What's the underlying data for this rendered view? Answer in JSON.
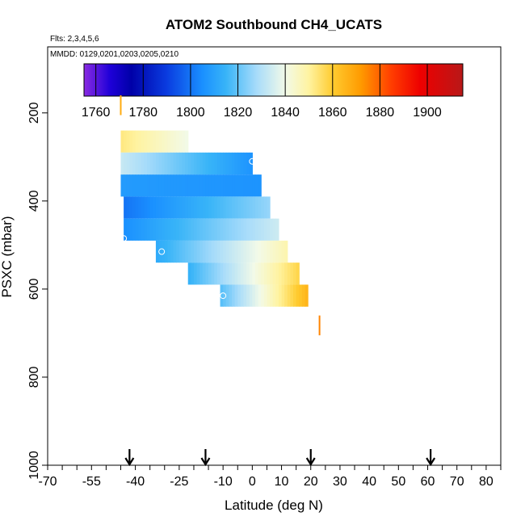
{
  "chart_data": {
    "type": "heatmap",
    "title": "ATOM2 Southbound CH4_UCATS",
    "flights_label": "Flts: 2,3,4,5,6",
    "dates_label": "MMDD: 0129,0201,0203,0205,0210",
    "xlabel": "Latitude (deg N)",
    "ylabel": "PSXC (mbar)",
    "xlim": [
      -70,
      85
    ],
    "ylim": [
      1000,
      50
    ],
    "x_ticks": [
      -70,
      -55,
      -40,
      -25,
      -10,
      0,
      10,
      20,
      30,
      40,
      50,
      60,
      70,
      80
    ],
    "x_tick_labels": [
      "-70",
      "-55",
      "-40",
      "-25",
      "-10",
      "0",
      "10",
      "20",
      "30",
      "40",
      "50",
      "60",
      "70",
      "80"
    ],
    "y_ticks": [
      200,
      400,
      600,
      800,
      1000
    ],
    "y_tick_labels": [
      "200",
      "400",
      "600",
      "800",
      "1000"
    ],
    "colorbar": {
      "range": [
        1755,
        1915
      ],
      "ticks": [
        1760,
        1780,
        1800,
        1820,
        1840,
        1860,
        1880,
        1900
      ],
      "tick_labels": [
        "1760",
        "1780",
        "1800",
        "1820",
        "1840",
        "1860",
        "1880",
        "1900"
      ],
      "stops": [
        {
          "v": 1755,
          "c": "#8a2be2"
        },
        {
          "v": 1766,
          "c": "#1e00d8"
        },
        {
          "v": 1775,
          "c": "#0000a8"
        },
        {
          "v": 1790,
          "c": "#0a3ce0"
        },
        {
          "v": 1805,
          "c": "#1a90ff"
        },
        {
          "v": 1815,
          "c": "#38b4f8"
        },
        {
          "v": 1828,
          "c": "#a8dcfa"
        },
        {
          "v": 1840,
          "c": "#f2fae8"
        },
        {
          "v": 1850,
          "c": "#fff3a0"
        },
        {
          "v": 1860,
          "c": "#ffcc30"
        },
        {
          "v": 1872,
          "c": "#ff9a00"
        },
        {
          "v": 1885,
          "c": "#ff3c00"
        },
        {
          "v": 1897,
          "c": "#ee0000"
        },
        {
          "v": 1915,
          "c": "#b81818"
        }
      ]
    },
    "arrows_latitude": [
      -42,
      -16,
      20,
      61
    ],
    "bands": [
      {
        "p_top": 240,
        "p_bot": 290,
        "x0": -45,
        "x1": -22,
        "v0": 1853,
        "v1": 1840
      },
      {
        "p_top": 290,
        "p_bot": 340,
        "x0": -45,
        "x1": 0,
        "v0": 1833,
        "v1": 1806
      },
      {
        "p_top": 340,
        "p_bot": 390,
        "x0": -45,
        "x1": 3,
        "v0": 1808,
        "v1": 1806
      },
      {
        "p_top": 390,
        "p_bot": 440,
        "x0": -44,
        "x1": 6,
        "v0": 1800,
        "v1": 1826
      },
      {
        "p_top": 440,
        "p_bot": 490,
        "x0": -44,
        "x1": 9,
        "v0": 1805,
        "v1": 1834
      },
      {
        "p_top": 490,
        "p_bot": 540,
        "x0": -33,
        "x1": 12,
        "v0": 1812,
        "v1": 1848
      },
      {
        "p_top": 540,
        "p_bot": 590,
        "x0": -22,
        "x1": 16,
        "v0": 1814,
        "v1": 1858
      },
      {
        "p_top": 590,
        "p_bot": 640,
        "x0": -11,
        "x1": 19,
        "v0": 1818,
        "v1": 1866
      }
    ],
    "ticks_marks": [
      {
        "lat": -45,
        "p_top": 160,
        "p_bot": 205,
        "value": 1868
      },
      {
        "lat": 23,
        "p_top": 660,
        "p_bot": 705,
        "value": 1875
      }
    ],
    "circle_markers": [
      {
        "lat": 0,
        "p": 310
      },
      {
        "lat": -44,
        "p": 485
      },
      {
        "lat": -31,
        "p": 515
      },
      {
        "lat": -10,
        "p": 615
      }
    ]
  }
}
